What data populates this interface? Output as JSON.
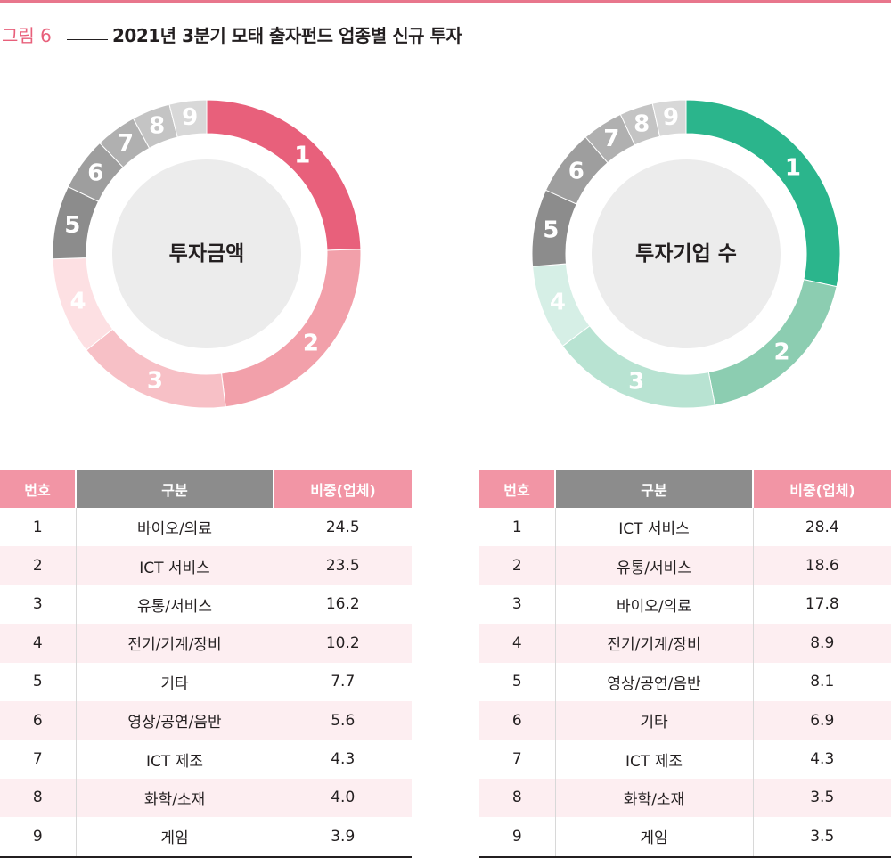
{
  "figure": {
    "label": "그림 6",
    "title": "2021년 3분기 모태 출자펀드 업종별 신규 투자"
  },
  "colors": {
    "left": [
      "#e8607b",
      "#f2a0aa",
      "#f7c0c6",
      "#fde0e3",
      "#8c8c8c",
      "#9e9e9e",
      "#b0b0b0",
      "#c4c4c4",
      "#d8d8d8"
    ],
    "right": [
      "#2bb58c",
      "#8ccdb1",
      "#b8e3d2",
      "#d6efe6",
      "#8c8c8c",
      "#9e9e9e",
      "#b0b0b0",
      "#c4c4c4",
      "#d8d8d8"
    ],
    "center": "#ececec",
    "header_pink": "#f295a5",
    "header_gray": "#8c8c8c"
  },
  "chart_data": [
    {
      "type": "pie",
      "center_label": "투자금액",
      "segments": [
        "1",
        "2",
        "3",
        "4",
        "5",
        "6",
        "7",
        "8",
        "9"
      ],
      "values": [
        24.5,
        23.5,
        16.2,
        10.2,
        7.7,
        5.6,
        4.3,
        4.0,
        3.9
      ]
    },
    {
      "type": "pie",
      "center_label": "투자기업 수",
      "segments": [
        "1",
        "2",
        "3",
        "4",
        "5",
        "6",
        "7",
        "8",
        "9"
      ],
      "values": [
        28.4,
        18.6,
        17.8,
        8.9,
        8.1,
        6.9,
        4.3,
        3.5,
        3.5
      ]
    }
  ],
  "tables": [
    {
      "headers": [
        "번호",
        "구분",
        "비중(업체)"
      ],
      "rows": [
        [
          "1",
          "바이오/의료",
          "24.5"
        ],
        [
          "2",
          "ICT 서비스",
          "23.5"
        ],
        [
          "3",
          "유통/서비스",
          "16.2"
        ],
        [
          "4",
          "전기/기계/장비",
          "10.2"
        ],
        [
          "5",
          "기타",
          "7.7"
        ],
        [
          "6",
          "영상/공연/음반",
          "5.6"
        ],
        [
          "7",
          "ICT 제조",
          "4.3"
        ],
        [
          "8",
          "화학/소재",
          "4.0"
        ],
        [
          "9",
          "게임",
          "3.9"
        ]
      ]
    },
    {
      "headers": [
        "번호",
        "구분",
        "비중(업체)"
      ],
      "rows": [
        [
          "1",
          "ICT 서비스",
          "28.4"
        ],
        [
          "2",
          "유통/서비스",
          "18.6"
        ],
        [
          "3",
          "바이오/의료",
          "17.8"
        ],
        [
          "4",
          "전기/기계/장비",
          "8.9"
        ],
        [
          "5",
          "영상/공연/음반",
          "8.1"
        ],
        [
          "6",
          "기타",
          "6.9"
        ],
        [
          "7",
          "ICT 제조",
          "4.3"
        ],
        [
          "8",
          "화학/소재",
          "3.5"
        ],
        [
          "9",
          "게임",
          "3.5"
        ]
      ]
    }
  ]
}
